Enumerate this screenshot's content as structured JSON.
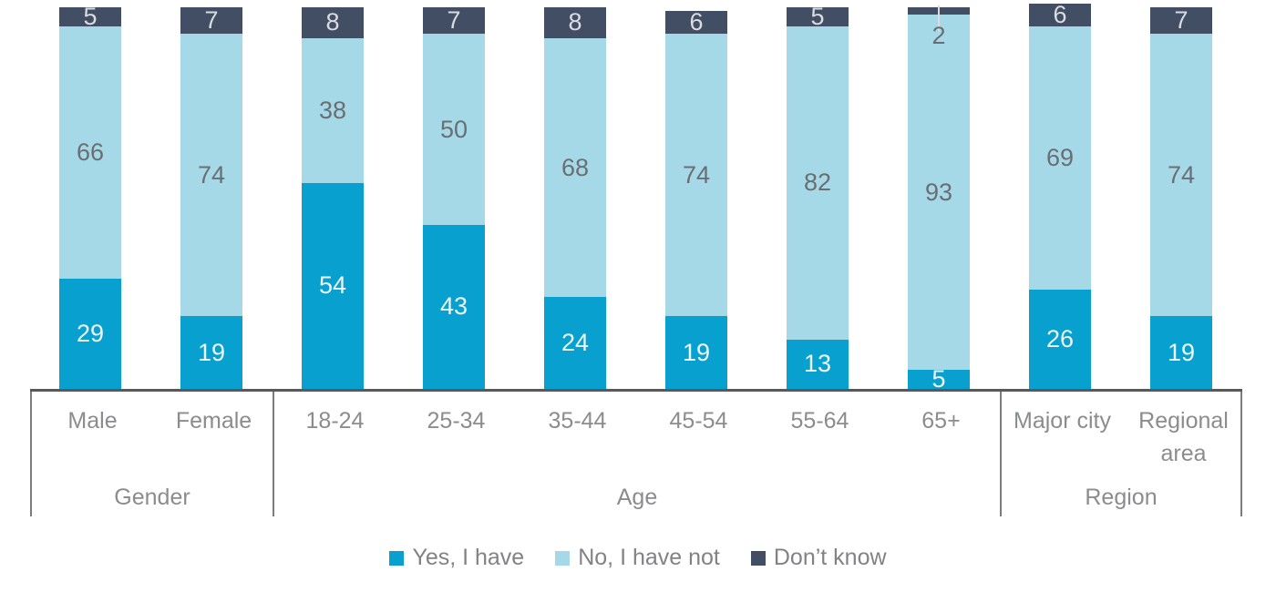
{
  "chart_data": {
    "type": "bar",
    "subtype": "100-percent-stacked-column",
    "title": "",
    "xlabel": "",
    "ylabel": "",
    "ylim": [
      0,
      100
    ],
    "grid": false,
    "legend_position": "bottom",
    "axis_groups": [
      {
        "label": "Gender",
        "categories": [
          "Male",
          "Female"
        ]
      },
      {
        "label": "Age",
        "categories": [
          "18-24",
          "25-34",
          "35-44",
          "45-54",
          "55-64",
          "65+"
        ]
      },
      {
        "label": "Region",
        "categories": [
          "Major city",
          "Regional area"
        ]
      }
    ],
    "categories": [
      "Male",
      "Female",
      "18-24",
      "25-34",
      "35-44",
      "45-54",
      "55-64",
      "65+",
      "Major city",
      "Regional area"
    ],
    "series": [
      {
        "name": "Yes, I have",
        "color": "#07a0cf",
        "label_color": "#eef7fb",
        "values": [
          29,
          19,
          54,
          43,
          24,
          19,
          13,
          5,
          26,
          19
        ]
      },
      {
        "name": "No, I have not",
        "color": "#a6d9e8",
        "label_color": "#6a6e73",
        "values": [
          66,
          74,
          38,
          50,
          68,
          74,
          82,
          93,
          69,
          74
        ]
      },
      {
        "name": "Don’t know",
        "color": "#424e63",
        "label_color": "#d9dce1",
        "values": [
          5,
          7,
          8,
          7,
          8,
          6,
          5,
          2,
          6,
          7
        ]
      }
    ],
    "colors": {
      "axis_line": "#595959",
      "axis_border": "#7c7c7c",
      "axis_text": "#8a8c8f",
      "legend_text": "#808285",
      "leader_line": "#dcdcdc"
    }
  }
}
